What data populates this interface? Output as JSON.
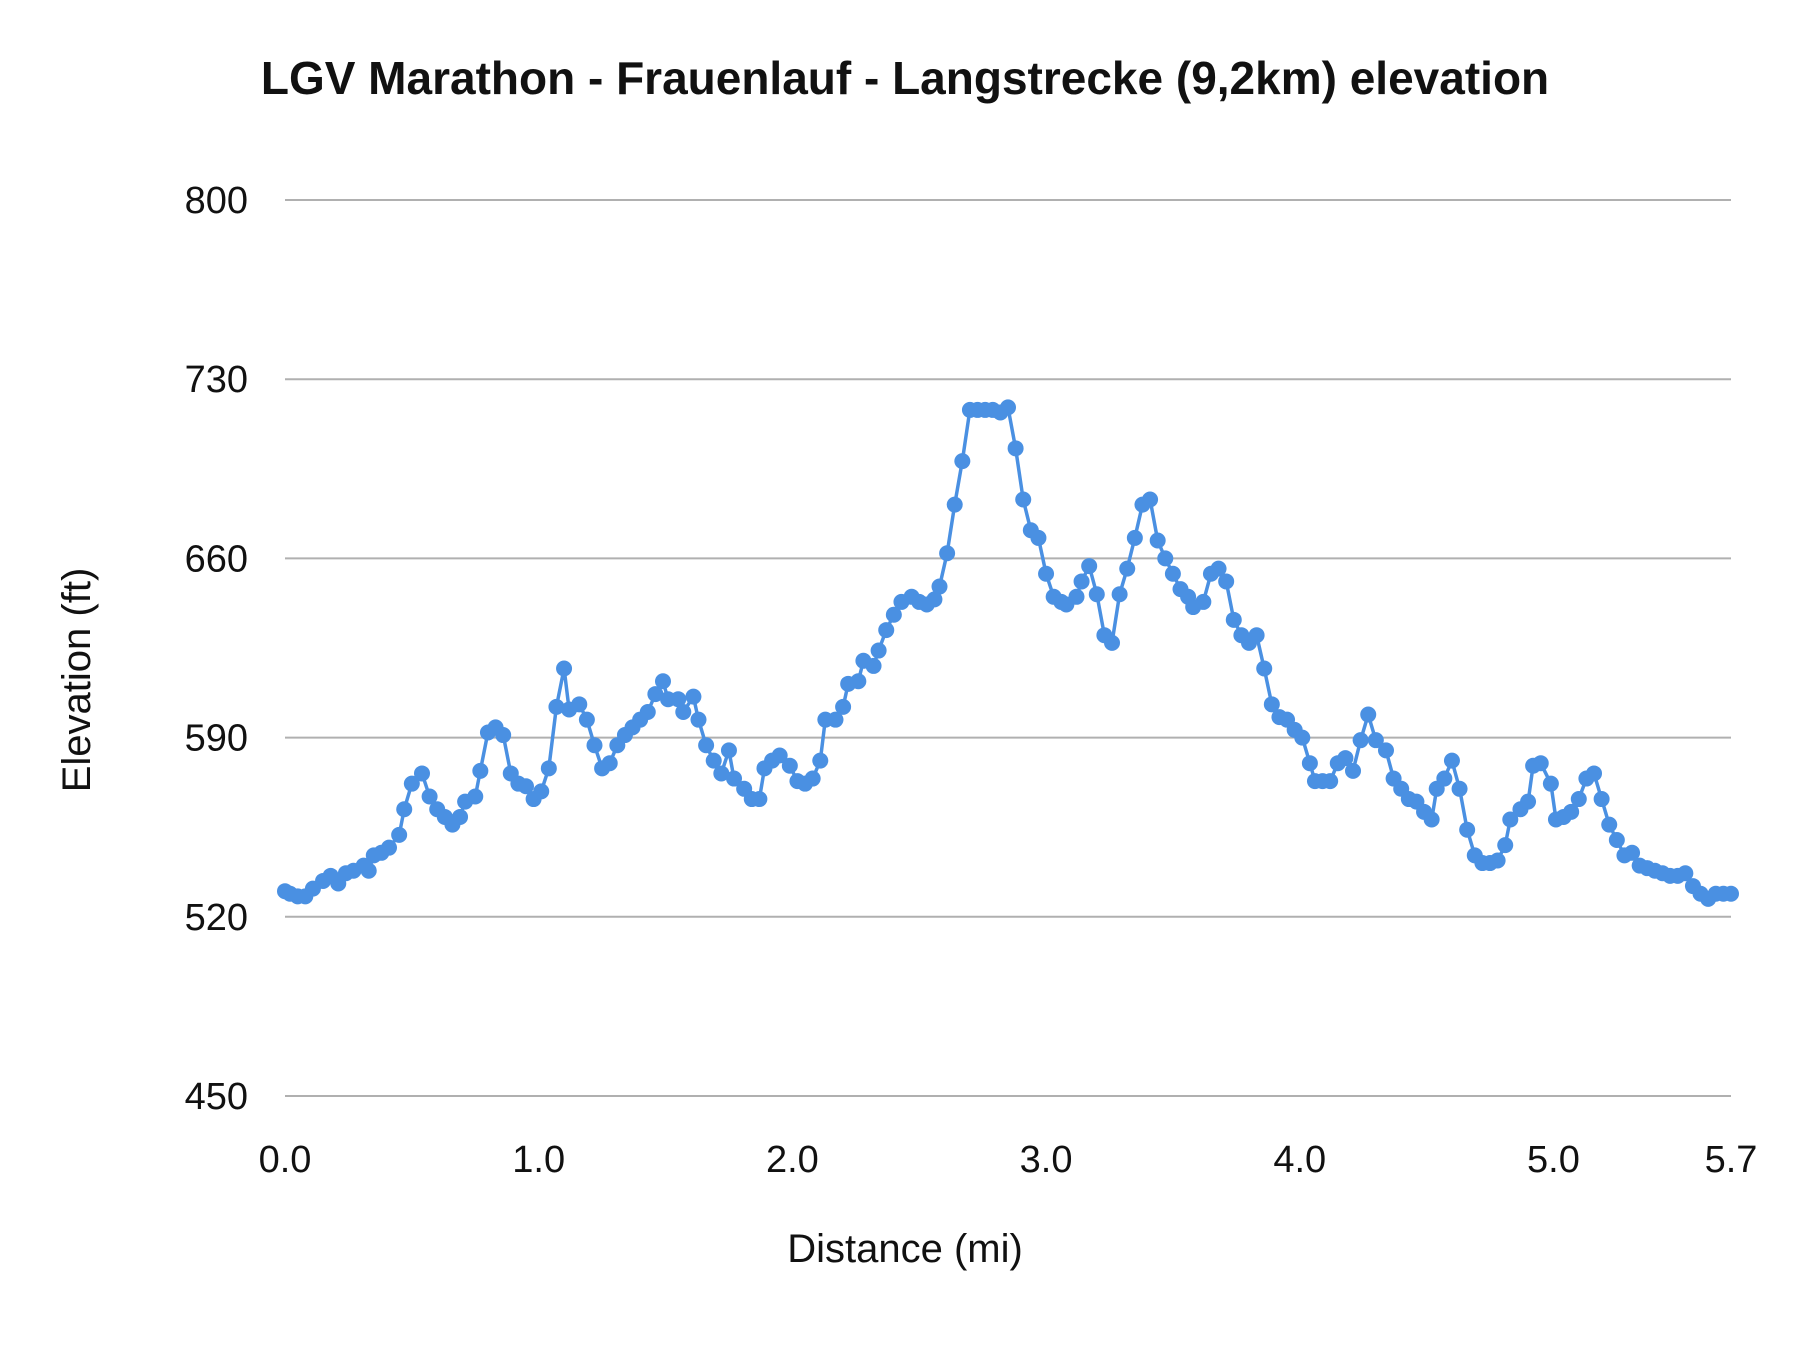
{
  "chart_data": {
    "type": "line",
    "title": "LGV Marathon - Frauenlauf - Langstrecke (9,2km) elevation",
    "xlabel": "Distance (mi)",
    "ylabel": "Elevation (ft)",
    "xlim": [
      0,
      5.7
    ],
    "ylim": [
      450,
      800
    ],
    "x_ticks": [
      "0.0",
      "1.0",
      "2.0",
      "3.0",
      "4.0",
      "5.0",
      "5.7"
    ],
    "y_ticks": [
      "450",
      "520",
      "590",
      "660",
      "730",
      "800"
    ],
    "grid": "horizontal",
    "legend": "none",
    "markers": true,
    "colors": {
      "series": "#4a90e2",
      "grid": "#b0b0b0"
    },
    "series": [
      {
        "x": [
          0.0,
          0.02,
          0.05,
          0.08,
          0.11,
          0.15,
          0.18,
          0.21,
          0.24,
          0.27,
          0.31,
          0.33,
          0.35,
          0.38,
          0.41,
          0.45,
          0.47,
          0.5,
          0.54,
          0.57,
          0.6,
          0.63,
          0.66,
          0.69,
          0.71,
          0.75,
          0.77,
          0.8,
          0.83,
          0.86,
          0.89,
          0.92,
          0.95,
          0.98,
          1.01,
          1.04,
          1.07,
          1.1,
          1.12,
          1.16,
          1.19,
          1.22,
          1.25,
          1.28,
          1.31,
          1.34,
          1.37,
          1.4,
          1.43,
          1.46,
          1.49,
          1.51,
          1.55,
          1.57,
          1.61,
          1.63,
          1.66,
          1.69,
          1.72,
          1.75,
          1.77,
          1.81,
          1.84,
          1.87,
          1.89,
          1.92,
          1.95,
          1.99,
          2.02,
          2.05,
          2.08,
          2.11,
          2.13,
          2.17,
          2.2,
          2.22,
          2.26,
          2.28,
          2.32,
          2.34,
          2.37,
          2.4,
          2.43,
          2.47,
          2.5,
          2.53,
          2.56,
          2.58,
          2.61,
          2.64,
          2.67,
          2.7,
          2.73,
          2.76,
          2.79,
          2.82,
          2.85,
          2.88,
          2.91,
          2.94,
          2.97,
          3.0,
          3.03,
          3.06,
          3.08,
          3.12,
          3.14,
          3.17,
          3.2,
          3.23,
          3.26,
          3.29,
          3.32,
          3.35,
          3.38,
          3.41,
          3.44,
          3.47,
          3.5,
          3.53,
          3.56,
          3.58,
          3.62,
          3.65,
          3.68,
          3.71,
          3.74,
          3.77,
          3.8,
          3.83,
          3.86,
          3.89,
          3.92,
          3.95,
          3.98,
          4.01,
          4.04,
          4.06,
          4.09,
          4.12,
          4.15,
          4.18,
          4.21,
          4.24,
          4.27,
          4.3,
          4.34,
          4.37,
          4.4,
          4.43,
          4.46,
          4.49,
          4.52,
          4.54,
          4.57,
          4.6,
          4.63,
          4.66,
          4.69,
          4.72,
          4.75,
          4.78,
          4.81,
          4.83,
          4.87,
          4.9,
          4.92,
          4.95,
          4.99,
          5.01,
          5.04,
          5.07,
          5.1,
          5.13,
          5.16,
          5.19,
          5.22,
          5.25,
          5.28,
          5.31,
          5.34,
          5.37,
          5.4,
          5.43,
          5.46,
          5.49,
          5.52,
          5.55,
          5.58,
          5.61,
          5.64,
          5.67,
          5.7
        ],
        "y": [
          530,
          529,
          528,
          528,
          531,
          534,
          536,
          533,
          537,
          538,
          540,
          538,
          544,
          545,
          547,
          552,
          562,
          572,
          576,
          567,
          562,
          559,
          556,
          559,
          565,
          567,
          577,
          592,
          594,
          591,
          576,
          572,
          571,
          566,
          569,
          578,
          602,
          617,
          601,
          603,
          597,
          587,
          578,
          580,
          587,
          591,
          594,
          597,
          600,
          607,
          612,
          605,
          605,
          600,
          606,
          597,
          587,
          581,
          576,
          585,
          574,
          570,
          566,
          566,
          578,
          581,
          583,
          579,
          573,
          572,
          574,
          581,
          597,
          597,
          602,
          611,
          612,
          620,
          618,
          624,
          632,
          638,
          643,
          645,
          643,
          642,
          644,
          649,
          662,
          681,
          698,
          718,
          718,
          718,
          718,
          717,
          719,
          703,
          683,
          671,
          668,
          654,
          645,
          643,
          642,
          645,
          651,
          657,
          646,
          630,
          627,
          646,
          656,
          668,
          681,
          683,
          667,
          660,
          654,
          648,
          645,
          641,
          643,
          654,
          656,
          651,
          636,
          630,
          627,
          630,
          617,
          603,
          598,
          597,
          593,
          590,
          580,
          573,
          573,
          573,
          580,
          582,
          577,
          589,
          599,
          589,
          585,
          574,
          570,
          566,
          565,
          561,
          558,
          570,
          574,
          581,
          570,
          554,
          544,
          541,
          541,
          542,
          548,
          558,
          562,
          565,
          579,
          580,
          572,
          558,
          559,
          561,
          566,
          574,
          576,
          566,
          556,
          550,
          544,
          545,
          540,
          539,
          538,
          537,
          536,
          536,
          537,
          532,
          529,
          527,
          529,
          529,
          529
        ]
      }
    ]
  }
}
